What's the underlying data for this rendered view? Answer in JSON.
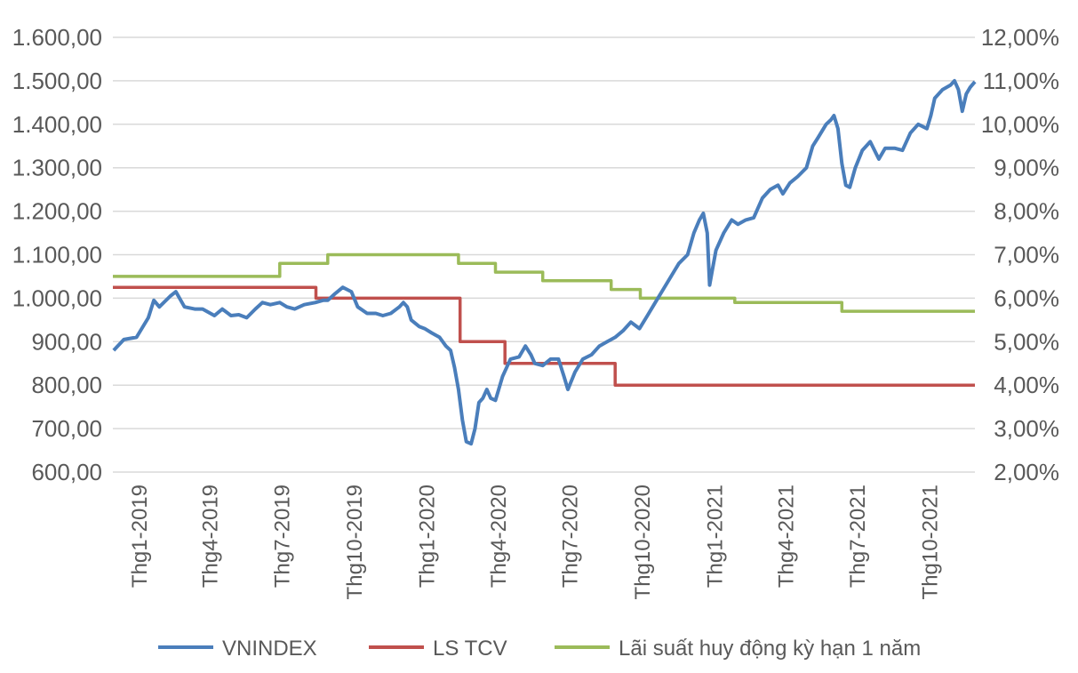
{
  "chart_data": {
    "type": "line",
    "title": "",
    "xlabel": "",
    "ylabel": "",
    "grid": true,
    "legend_position": "bottom",
    "x_ticks": [
      "Thg1-2019",
      "Thg4-2019",
      "Thg7-2019",
      "Thg10-2019",
      "Thg1-2020",
      "Thg4-2020",
      "Thg7-2020",
      "Thg10-2020",
      "Thg1-2021",
      "Thg4-2021",
      "Thg7-2021",
      "Thg10-2021"
    ],
    "x_range": [
      "2019-01-01",
      "2021-12-31"
    ],
    "y_left": {
      "range": [
        600,
        1600
      ],
      "ticks": [
        600,
        700,
        800,
        900,
        1000,
        1100,
        1200,
        1300,
        1400,
        1500,
        1600
      ],
      "tick_labels": [
        "600,00",
        "700,00",
        "800,00",
        "900,00",
        "1.000,00",
        "1.100,00",
        "1.200,00",
        "1.300,00",
        "1.400,00",
        "1.500,00",
        "1.600,00"
      ]
    },
    "y_right": {
      "range": [
        2,
        12
      ],
      "ticks": [
        2,
        3,
        4,
        5,
        6,
        7,
        8,
        9,
        10,
        11,
        12
      ],
      "tick_labels": [
        "2,00%",
        "3,00%",
        "4,00%",
        "5,00%",
        "6,00%",
        "7,00%",
        "8,00%",
        "9,00%",
        "10,00%",
        "11,00%",
        "12,00%"
      ]
    },
    "series": [
      {
        "name": "VNINDEX",
        "axis": "left",
        "color": "#4A7EBB",
        "points": [
          [
            "2019-01-02",
            880
          ],
          [
            "2019-01-15",
            905
          ],
          [
            "2019-01-31",
            910
          ],
          [
            "2019-02-15",
            955
          ],
          [
            "2019-02-22",
            995
          ],
          [
            "2019-03-01",
            980
          ],
          [
            "2019-03-15",
            1005
          ],
          [
            "2019-03-22",
            1015
          ],
          [
            "2019-04-02",
            980
          ],
          [
            "2019-04-15",
            975
          ],
          [
            "2019-04-25",
            975
          ],
          [
            "2019-05-10",
            960
          ],
          [
            "2019-05-20",
            975
          ],
          [
            "2019-05-31",
            960
          ],
          [
            "2019-06-10",
            962
          ],
          [
            "2019-06-20",
            955
          ],
          [
            "2019-07-01",
            975
          ],
          [
            "2019-07-10",
            990
          ],
          [
            "2019-07-20",
            985
          ],
          [
            "2019-08-01",
            990
          ],
          [
            "2019-08-10",
            980
          ],
          [
            "2019-08-20",
            975
          ],
          [
            "2019-09-01",
            985
          ],
          [
            "2019-09-15",
            990
          ],
          [
            "2019-09-25",
            995
          ],
          [
            "2019-10-01",
            995
          ],
          [
            "2019-10-10",
            1010
          ],
          [
            "2019-10-20",
            1025
          ],
          [
            "2019-10-31",
            1015
          ],
          [
            "2019-11-08",
            980
          ],
          [
            "2019-11-20",
            965
          ],
          [
            "2019-12-01",
            965
          ],
          [
            "2019-12-10",
            960
          ],
          [
            "2019-12-20",
            965
          ],
          [
            "2019-12-31",
            980
          ],
          [
            "2020-01-05",
            990
          ],
          [
            "2020-01-10",
            980
          ],
          [
            "2020-01-15",
            950
          ],
          [
            "2020-01-25",
            935
          ],
          [
            "2020-02-01",
            930
          ],
          [
            "2020-02-10",
            920
          ],
          [
            "2020-02-20",
            910
          ],
          [
            "2020-02-28",
            890
          ],
          [
            "2020-03-05",
            880
          ],
          [
            "2020-03-10",
            840
          ],
          [
            "2020-03-15",
            790
          ],
          [
            "2020-03-20",
            720
          ],
          [
            "2020-03-25",
            670
          ],
          [
            "2020-03-31",
            665
          ],
          [
            "2020-04-05",
            700
          ],
          [
            "2020-04-10",
            760
          ],
          [
            "2020-04-15",
            770
          ],
          [
            "2020-04-20",
            790
          ],
          [
            "2020-04-25",
            770
          ],
          [
            "2020-05-01",
            765
          ],
          [
            "2020-05-10",
            820
          ],
          [
            "2020-05-20",
            860
          ],
          [
            "2020-05-31",
            865
          ],
          [
            "2020-06-08",
            890
          ],
          [
            "2020-06-15",
            870
          ],
          [
            "2020-06-20",
            850
          ],
          [
            "2020-06-30",
            845
          ],
          [
            "2020-07-10",
            860
          ],
          [
            "2020-07-20",
            860
          ],
          [
            "2020-07-27",
            820
          ],
          [
            "2020-08-01",
            790
          ],
          [
            "2020-08-10",
            830
          ],
          [
            "2020-08-20",
            860
          ],
          [
            "2020-08-31",
            870
          ],
          [
            "2020-09-10",
            890
          ],
          [
            "2020-09-20",
            900
          ],
          [
            "2020-09-30",
            910
          ],
          [
            "2020-10-10",
            925
          ],
          [
            "2020-10-20",
            945
          ],
          [
            "2020-10-31",
            930
          ],
          [
            "2020-11-10",
            960
          ],
          [
            "2020-11-20",
            990
          ],
          [
            "2020-11-30",
            1020
          ],
          [
            "2020-12-10",
            1050
          ],
          [
            "2020-12-20",
            1080
          ],
          [
            "2020-12-31",
            1100
          ],
          [
            "2021-01-08",
            1150
          ],
          [
            "2021-01-15",
            1180
          ],
          [
            "2021-01-20",
            1195
          ],
          [
            "2021-01-25",
            1150
          ],
          [
            "2021-01-28",
            1030
          ],
          [
            "2021-01-31",
            1060
          ],
          [
            "2021-02-05",
            1110
          ],
          [
            "2021-02-15",
            1150
          ],
          [
            "2021-02-25",
            1180
          ],
          [
            "2021-03-05",
            1170
          ],
          [
            "2021-03-15",
            1180
          ],
          [
            "2021-03-25",
            1185
          ],
          [
            "2021-04-05",
            1230
          ],
          [
            "2021-04-15",
            1250
          ],
          [
            "2021-04-25",
            1260
          ],
          [
            "2021-05-01",
            1240
          ],
          [
            "2021-05-10",
            1265
          ],
          [
            "2021-05-20",
            1280
          ],
          [
            "2021-05-31",
            1300
          ],
          [
            "2021-06-08",
            1350
          ],
          [
            "2021-06-15",
            1370
          ],
          [
            "2021-06-25",
            1400
          ],
          [
            "2021-07-01",
            1410
          ],
          [
            "2021-07-05",
            1420
          ],
          [
            "2021-07-10",
            1390
          ],
          [
            "2021-07-15",
            1310
          ],
          [
            "2021-07-20",
            1260
          ],
          [
            "2021-07-25",
            1255
          ],
          [
            "2021-08-01",
            1300
          ],
          [
            "2021-08-10",
            1340
          ],
          [
            "2021-08-20",
            1360
          ],
          [
            "2021-08-31",
            1320
          ],
          [
            "2021-09-08",
            1345
          ],
          [
            "2021-09-20",
            1345
          ],
          [
            "2021-09-30",
            1340
          ],
          [
            "2021-10-10",
            1380
          ],
          [
            "2021-10-20",
            1400
          ],
          [
            "2021-10-31",
            1390
          ],
          [
            "2021-11-05",
            1420
          ],
          [
            "2021-11-10",
            1460
          ],
          [
            "2021-11-20",
            1480
          ],
          [
            "2021-11-30",
            1490
          ],
          [
            "2021-12-05",
            1500
          ],
          [
            "2021-12-10",
            1480
          ],
          [
            "2021-12-15",
            1430
          ],
          [
            "2021-12-20",
            1470
          ],
          [
            "2021-12-25",
            1485
          ],
          [
            "2021-12-31",
            1498
          ]
        ]
      },
      {
        "name": "LS TCV",
        "axis": "right",
        "color": "#C0504D",
        "points": [
          [
            "2019-01-01",
            6.25
          ],
          [
            "2019-09-16",
            6.25
          ],
          [
            "2019-09-16",
            6.0
          ],
          [
            "2020-03-17",
            6.0
          ],
          [
            "2020-03-17",
            5.0
          ],
          [
            "2020-05-13",
            5.0
          ],
          [
            "2020-05-13",
            4.5
          ],
          [
            "2020-09-30",
            4.5
          ],
          [
            "2020-09-30",
            4.0
          ],
          [
            "2021-12-31",
            4.0
          ]
        ]
      },
      {
        "name": "Lãi suất huy động kỳ hạn 1 năm",
        "axis": "right",
        "color": "#9BBB59",
        "points": [
          [
            "2019-01-01",
            6.5
          ],
          [
            "2019-08-01",
            6.5
          ],
          [
            "2019-08-01",
            6.8
          ],
          [
            "2019-10-01",
            6.8
          ],
          [
            "2019-10-01",
            7.0
          ],
          [
            "2020-03-15",
            7.0
          ],
          [
            "2020-03-15",
            6.8
          ],
          [
            "2020-05-01",
            6.8
          ],
          [
            "2020-05-01",
            6.6
          ],
          [
            "2020-06-30",
            6.6
          ],
          [
            "2020-06-30",
            6.4
          ],
          [
            "2020-09-25",
            6.4
          ],
          [
            "2020-09-25",
            6.2
          ],
          [
            "2020-11-01",
            6.2
          ],
          [
            "2020-11-01",
            6.0
          ],
          [
            "2021-03-01",
            6.0
          ],
          [
            "2021-03-01",
            5.9
          ],
          [
            "2021-07-15",
            5.9
          ],
          [
            "2021-07-15",
            5.7
          ],
          [
            "2021-12-31",
            5.7
          ]
        ]
      }
    ]
  }
}
